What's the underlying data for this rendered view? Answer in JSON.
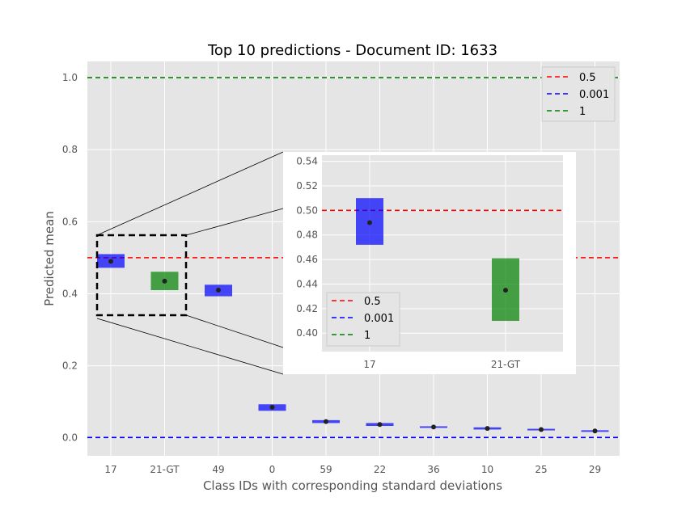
{
  "chart_data": {
    "type": "box",
    "title": "Top 10 predictions - Document ID: 1633",
    "xlabel": "Class IDs with corresponding standard deviations",
    "ylabel": "Predicted mean",
    "ylim": [
      -0.05,
      1.045
    ],
    "yticks": [
      "0.0",
      "0.2",
      "0.4",
      "0.6",
      "0.8",
      "1.0"
    ],
    "grid": true,
    "categories": [
      "17",
      "21-GT",
      "49",
      "0",
      "59",
      "22",
      "36",
      "10",
      "25",
      "29"
    ],
    "means": [
      0.49,
      0.435,
      0.41,
      0.085,
      0.045,
      0.037,
      0.03,
      0.026,
      0.023,
      0.019
    ],
    "lows": [
      0.472,
      0.41,
      0.393,
      0.075,
      0.041,
      0.033,
      0.028,
      0.023,
      0.021,
      0.017
    ],
    "highs": [
      0.51,
      0.461,
      0.425,
      0.093,
      0.049,
      0.041,
      0.032,
      0.029,
      0.025,
      0.021
    ],
    "ground_truth_index": 1,
    "colors": {
      "box": "#0000ff",
      "ground_truth": "#008000",
      "mean_marker": "#222222"
    },
    "reference_lines": [
      {
        "label": "0.5",
        "y": 0.5,
        "color": "#ff0000"
      },
      {
        "label": "0.001",
        "y": 0.001,
        "color": "#0000ff"
      },
      {
        "label": "1",
        "y": 1.0,
        "color": "#008000"
      }
    ],
    "legend_placement": "top-right",
    "inset": {
      "ylim": [
        0.385,
        0.545
      ],
      "yticks": [
        "0.40",
        "0.42",
        "0.44",
        "0.46",
        "0.48",
        "0.50",
        "0.52",
        "0.54"
      ],
      "categories": [
        "17",
        "21-GT"
      ],
      "legend_placement": "lower-left"
    }
  }
}
